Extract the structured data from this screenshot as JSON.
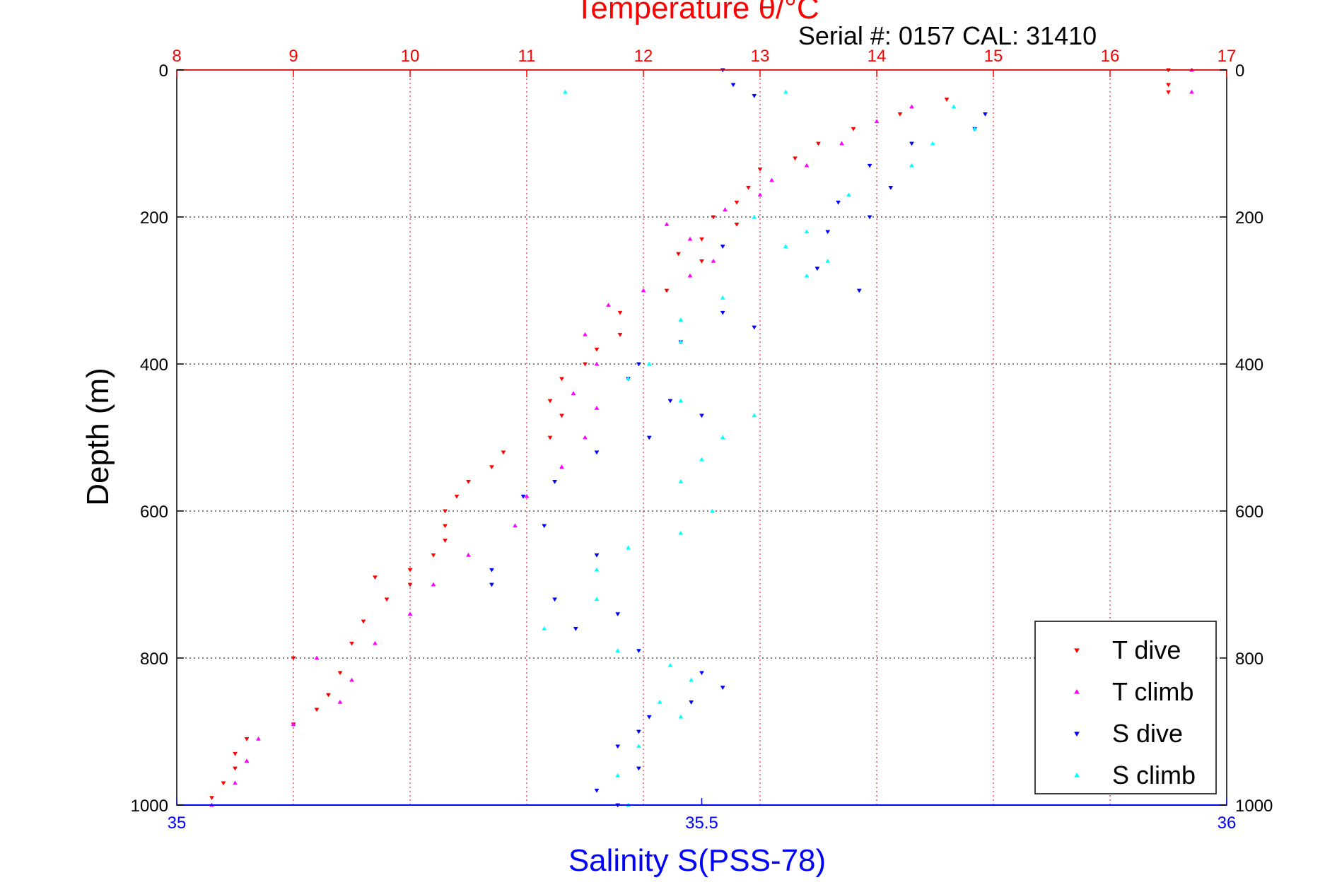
{
  "chart_data": {
    "type": "scatter",
    "title": "Temperature θ/°C",
    "subtitle": "Serial #: 0157  CAL: 31410",
    "xlabel_bottom": "Salinity S(PSS-78)",
    "xlabel_top": "",
    "ylabel": "Depth (m)",
    "ylim": [
      0,
      1000
    ],
    "y_reversed": true,
    "y_ticks": [
      "0",
      "200",
      "400",
      "600",
      "800",
      "1000"
    ],
    "x_top": {
      "quantity": "temperature",
      "lim": [
        8,
        17
      ],
      "ticks": [
        "8",
        "9",
        "10",
        "11",
        "12",
        "13",
        "14",
        "15",
        "16",
        "17"
      ],
      "color": "#ff0000"
    },
    "x_bottom": {
      "quantity": "salinity",
      "lim": [
        35,
        36
      ],
      "ticks": [
        "35",
        "35.5",
        "36"
      ],
      "color": "#0000ff"
    },
    "grid": true,
    "legend_position": "bottom-right",
    "series": [
      {
        "name": "T dive",
        "axis": "top",
        "color": "#ff0000",
        "marker": "triangle-down",
        "points": [
          [
            16.5,
            0
          ],
          [
            16.5,
            20
          ],
          [
            16.5,
            30
          ],
          [
            14.6,
            40
          ],
          [
            14.2,
            60
          ],
          [
            13.8,
            80
          ],
          [
            13.5,
            100
          ],
          [
            13.3,
            120
          ],
          [
            13.0,
            135
          ],
          [
            12.9,
            160
          ],
          [
            12.8,
            180
          ],
          [
            12.6,
            200
          ],
          [
            12.8,
            210
          ],
          [
            12.5,
            230
          ],
          [
            12.3,
            250
          ],
          [
            12.5,
            260
          ],
          [
            12.2,
            300
          ],
          [
            11.8,
            330
          ],
          [
            11.8,
            360
          ],
          [
            11.6,
            380
          ],
          [
            11.5,
            400
          ],
          [
            11.3,
            420
          ],
          [
            11.2,
            450
          ],
          [
            11.3,
            470
          ],
          [
            11.2,
            500
          ],
          [
            10.8,
            520
          ],
          [
            10.7,
            540
          ],
          [
            10.5,
            560
          ],
          [
            10.4,
            580
          ],
          [
            10.3,
            600
          ],
          [
            10.3,
            620
          ],
          [
            10.3,
            640
          ],
          [
            10.2,
            660
          ],
          [
            10.0,
            680
          ],
          [
            9.7,
            690
          ],
          [
            10.0,
            700
          ],
          [
            9.8,
            720
          ],
          [
            9.6,
            750
          ],
          [
            9.5,
            780
          ],
          [
            9.0,
            800
          ],
          [
            9.4,
            820
          ],
          [
            9.3,
            850
          ],
          [
            9.2,
            870
          ],
          [
            9.0,
            890
          ],
          [
            8.6,
            910
          ],
          [
            8.5,
            930
          ],
          [
            8.5,
            950
          ],
          [
            8.4,
            970
          ],
          [
            8.3,
            990
          ]
        ]
      },
      {
        "name": "T climb",
        "axis": "top",
        "color": "#ff00ff",
        "marker": "triangle-up",
        "points": [
          [
            16.7,
            0
          ],
          [
            16.7,
            30
          ],
          [
            14.3,
            50
          ],
          [
            14.0,
            70
          ],
          [
            13.7,
            100
          ],
          [
            13.4,
            130
          ],
          [
            13.1,
            150
          ],
          [
            13.0,
            170
          ],
          [
            12.7,
            190
          ],
          [
            12.2,
            210
          ],
          [
            12.4,
            230
          ],
          [
            12.6,
            260
          ],
          [
            12.4,
            280
          ],
          [
            12.0,
            300
          ],
          [
            11.7,
            320
          ],
          [
            11.5,
            360
          ],
          [
            11.6,
            400
          ],
          [
            11.4,
            440
          ],
          [
            11.6,
            460
          ],
          [
            11.5,
            500
          ],
          [
            11.3,
            540
          ],
          [
            11.0,
            580
          ],
          [
            10.9,
            620
          ],
          [
            10.5,
            660
          ],
          [
            10.2,
            700
          ],
          [
            10.0,
            740
          ],
          [
            9.7,
            780
          ],
          [
            9.2,
            800
          ],
          [
            9.5,
            830
          ],
          [
            9.4,
            860
          ],
          [
            9.0,
            890
          ],
          [
            8.7,
            910
          ],
          [
            8.6,
            940
          ],
          [
            8.5,
            970
          ],
          [
            8.3,
            1000
          ]
        ]
      },
      {
        "name": "S dive",
        "axis": "bottom",
        "color": "#0000ff",
        "marker": "triangle-down",
        "points": [
          [
            35.52,
            0
          ],
          [
            35.53,
            20
          ],
          [
            35.55,
            35
          ],
          [
            35.77,
            60
          ],
          [
            35.76,
            80
          ],
          [
            35.7,
            100
          ],
          [
            35.66,
            130
          ],
          [
            35.68,
            160
          ],
          [
            35.63,
            180
          ],
          [
            35.66,
            200
          ],
          [
            35.62,
            220
          ],
          [
            35.52,
            240
          ],
          [
            35.61,
            270
          ],
          [
            35.65,
            300
          ],
          [
            35.52,
            330
          ],
          [
            35.55,
            350
          ],
          [
            35.48,
            370
          ],
          [
            35.44,
            400
          ],
          [
            35.43,
            420
          ],
          [
            35.47,
            450
          ],
          [
            35.5,
            470
          ],
          [
            35.45,
            500
          ],
          [
            35.4,
            520
          ],
          [
            35.36,
            560
          ],
          [
            35.33,
            580
          ],
          [
            35.35,
            620
          ],
          [
            35.4,
            660
          ],
          [
            35.3,
            680
          ],
          [
            35.3,
            700
          ],
          [
            35.36,
            720
          ],
          [
            35.42,
            740
          ],
          [
            35.38,
            760
          ],
          [
            35.44,
            790
          ],
          [
            35.5,
            820
          ],
          [
            35.52,
            840
          ],
          [
            35.49,
            860
          ],
          [
            35.45,
            880
          ],
          [
            35.44,
            900
          ],
          [
            35.42,
            920
          ],
          [
            35.44,
            950
          ],
          [
            35.4,
            980
          ],
          [
            35.42,
            1000
          ]
        ]
      },
      {
        "name": "S climb",
        "axis": "bottom",
        "color": "#00ffff",
        "marker": "triangle-up",
        "points": [
          [
            35.37,
            30
          ],
          [
            35.58,
            30
          ],
          [
            35.74,
            50
          ],
          [
            35.76,
            80
          ],
          [
            35.72,
            100
          ],
          [
            35.7,
            130
          ],
          [
            35.64,
            170
          ],
          [
            35.55,
            200
          ],
          [
            35.6,
            220
          ],
          [
            35.58,
            240
          ],
          [
            35.62,
            260
          ],
          [
            35.6,
            280
          ],
          [
            35.52,
            310
          ],
          [
            35.48,
            340
          ],
          [
            35.48,
            370
          ],
          [
            35.45,
            400
          ],
          [
            35.43,
            420
          ],
          [
            35.48,
            450
          ],
          [
            35.55,
            470
          ],
          [
            35.52,
            500
          ],
          [
            35.5,
            530
          ],
          [
            35.48,
            560
          ],
          [
            35.51,
            600
          ],
          [
            35.48,
            630
          ],
          [
            35.43,
            650
          ],
          [
            35.4,
            680
          ],
          [
            35.4,
            720
          ],
          [
            35.35,
            760
          ],
          [
            35.42,
            790
          ],
          [
            35.47,
            810
          ],
          [
            35.49,
            830
          ],
          [
            35.46,
            860
          ],
          [
            35.48,
            880
          ],
          [
            35.44,
            920
          ],
          [
            35.42,
            960
          ],
          [
            35.43,
            1000
          ]
        ]
      }
    ]
  }
}
